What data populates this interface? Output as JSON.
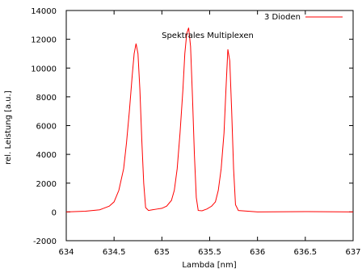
{
  "chart_data": {
    "type": "line",
    "title": "Spektrales Multiplexen",
    "xlabel": "Lambda [nm]",
    "ylabel": "rel. Leistung [a.u.]",
    "xlim": [
      634,
      637
    ],
    "ylim": [
      -2000,
      14000
    ],
    "xticks": [
      "634",
      "634.5",
      "635",
      "635.5",
      "636",
      "636.5",
      "637"
    ],
    "yticks": [
      "-2000",
      "0",
      "2000",
      "4000",
      "6000",
      "8000",
      "10000",
      "12000",
      "14000"
    ],
    "grid": false,
    "legend_position": "top-right",
    "series": [
      {
        "name": "3 Dioden",
        "color": "#ff0000",
        "x": [
          634.0,
          634.2,
          634.35,
          634.45,
          634.5,
          634.55,
          634.6,
          634.63,
          634.66,
          634.69,
          634.71,
          634.73,
          634.75,
          634.77,
          634.79,
          634.81,
          634.83,
          634.86,
          634.9,
          634.95,
          635.0,
          635.05,
          635.1,
          635.13,
          635.16,
          635.19,
          635.22,
          635.24,
          635.26,
          635.28,
          635.3,
          635.32,
          635.34,
          635.36,
          635.38,
          635.42,
          635.47,
          635.52,
          635.56,
          635.59,
          635.62,
          635.65,
          635.67,
          635.69,
          635.71,
          635.73,
          635.75,
          635.77,
          635.8,
          635.9,
          636.0,
          636.5,
          637.0
        ],
        "y": [
          0,
          50,
          150,
          400,
          700,
          1500,
          3000,
          4800,
          7000,
          9500,
          11000,
          11700,
          11000,
          8500,
          5000,
          2000,
          300,
          100,
          150,
          200,
          250,
          400,
          800,
          1500,
          3000,
          5500,
          8500,
          11000,
          12400,
          12800,
          11500,
          8000,
          4000,
          1000,
          100,
          80,
          200,
          400,
          700,
          1500,
          3000,
          5500,
          8500,
          11300,
          10500,
          7000,
          3000,
          500,
          100,
          50,
          0,
          20,
          0
        ]
      }
    ]
  }
}
